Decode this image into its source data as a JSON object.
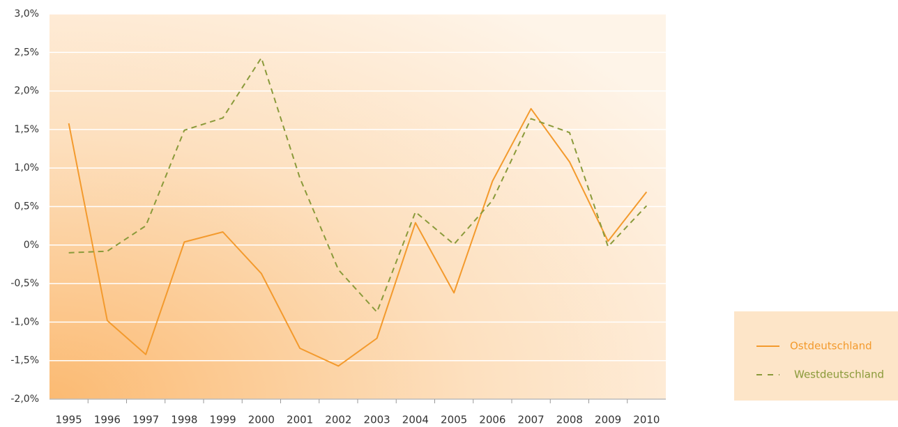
{
  "chart_data": {
    "type": "line",
    "categories": [
      "1995",
      "1996",
      "1997",
      "1998",
      "1999",
      "2000",
      "2001",
      "2002",
      "2003",
      "2004",
      "2005",
      "2006",
      "2007",
      "2008",
      "2009",
      "2010"
    ],
    "series": [
      {
        "name": "Ostdeutschland",
        "color": "#f39a2d",
        "dash": false,
        "values": [
          1.58,
          -0.98,
          -1.42,
          0.04,
          0.17,
          -0.37,
          -1.34,
          -1.57,
          -1.21,
          0.29,
          -0.62,
          0.83,
          1.77,
          1.08,
          0.05,
          0.69
        ]
      },
      {
        "name": "Westdeutschland",
        "color": "#8a9a3a",
        "dash": true,
        "values": [
          -0.1,
          -0.08,
          0.25,
          1.49,
          1.65,
          2.43,
          0.87,
          -0.32,
          -0.87,
          0.43,
          0.01,
          0.58,
          1.64,
          1.46,
          -0.02,
          0.51
        ]
      }
    ],
    "ylim": [
      -2.0,
      3.0
    ],
    "yticks": [
      {
        "value": -2.0,
        "label": "-2,0%"
      },
      {
        "value": -1.5,
        "label": "-1,5%"
      },
      {
        "value": -1.0,
        "label": "-1,0%"
      },
      {
        "value": -0.5,
        "label": "-0,5%"
      },
      {
        "value": 0,
        "label": "0%"
      },
      {
        "value": 0.5,
        "label": "0,5%"
      },
      {
        "value": 1.0,
        "label": "1,0%"
      },
      {
        "value": 1.5,
        "label": "1,5%"
      },
      {
        "value": 2.0,
        "label": "2,0%"
      },
      {
        "value": 2.5,
        "label": "2,5%"
      },
      {
        "value": 3.0,
        "label": "3,0%"
      }
    ],
    "grid": true
  }
}
